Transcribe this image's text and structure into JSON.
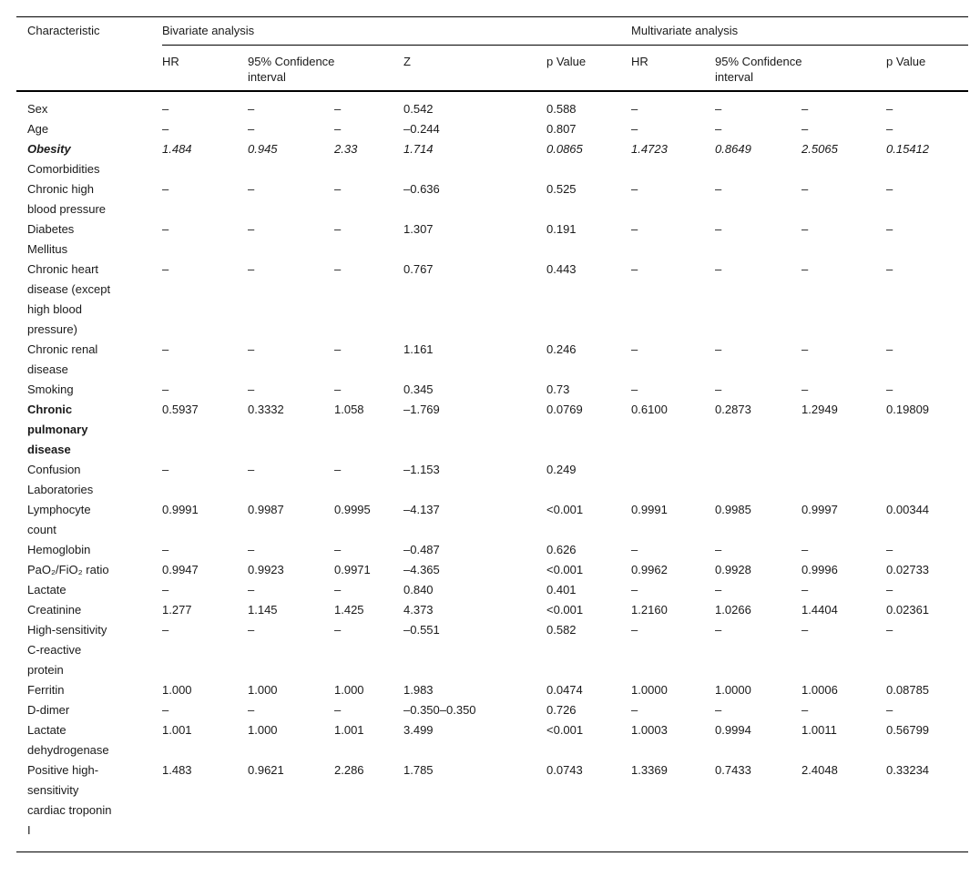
{
  "table": {
    "header": {
      "characteristic": "Characteristic",
      "bivariate_group": "Bivariate analysis",
      "multivariate_group": "Multivariate analysis",
      "sub": {
        "hr": "HR",
        "ci": "95% Confidence interval",
        "z": "Z",
        "p": "p Value"
      }
    },
    "rows": [
      {
        "label": "Sex",
        "style": "normal",
        "values": [
          "–",
          "–",
          "–",
          "0.542",
          "0.588",
          "–",
          "–",
          "–",
          "–"
        ]
      },
      {
        "label": "Age",
        "style": "normal",
        "values": [
          "–",
          "–",
          "–",
          "–0.244",
          "0.807",
          "–",
          "–",
          "–",
          "–"
        ]
      },
      {
        "label": "Obesity",
        "style": "bold-italic",
        "values": [
          "1.484",
          "0.945",
          "2.33",
          "1.714",
          "0.0865",
          "1.4723",
          "0.8649",
          "2.5065",
          "0.15412"
        ]
      },
      {
        "label": "Comorbidities",
        "style": "section",
        "values": []
      },
      {
        "label": "Chronic high blood pressure",
        "style": "normal",
        "values": [
          "–",
          "–",
          "–",
          "–0.636",
          "0.525",
          "–",
          "–",
          "–",
          "–"
        ]
      },
      {
        "label": "Diabetes Mellitus",
        "style": "normal",
        "values": [
          "–",
          "–",
          "–",
          "1.307",
          "0.191",
          "–",
          "–",
          "–",
          "–"
        ]
      },
      {
        "label": "Chronic heart disease (except high blood pressure)",
        "style": "normal",
        "values": [
          "–",
          "–",
          "–",
          "0.767",
          "0.443",
          "–",
          "–",
          "–",
          "–"
        ]
      },
      {
        "label": "Chronic renal disease",
        "style": "normal",
        "values": [
          "–",
          "–",
          "–",
          "1.161",
          "0.246",
          "–",
          "–",
          "–",
          "–"
        ]
      },
      {
        "label": "Smoking",
        "style": "normal",
        "values": [
          "–",
          "–",
          "–",
          "0.345",
          "0.73",
          "–",
          "–",
          "–",
          "–"
        ]
      },
      {
        "label": "Chronic pulmonary disease",
        "style": "bold",
        "values": [
          "0.5937",
          "0.3332",
          "1.058",
          "–1.769",
          "0.0769",
          "0.6100",
          "0.2873",
          "1.2949",
          "0.19809"
        ]
      },
      {
        "label": "Confusion",
        "style": "normal",
        "values": [
          "–",
          "–",
          "–",
          "–1.153",
          "0.249",
          "",
          "",
          "",
          ""
        ]
      },
      {
        "label": "Laboratories",
        "style": "section",
        "values": []
      },
      {
        "label": "Lymphocyte count",
        "style": "normal",
        "values": [
          "0.9991",
          "0.9987",
          "0.9995",
          "–4.137",
          "<0.001",
          "0.9991",
          "0.9985",
          "0.9997",
          "0.00344"
        ]
      },
      {
        "label": "Hemoglobin",
        "style": "normal",
        "values": [
          "–",
          "–",
          "–",
          "–0.487",
          "0.626",
          "–",
          "–",
          "–",
          "–"
        ]
      },
      {
        "label": "PaO₂/FiO₂ ratio",
        "style": "normal",
        "values": [
          "0.9947",
          "0.9923",
          "0.9971",
          "–4.365",
          "<0.001",
          "0.9962",
          "0.9928",
          "0.9996",
          "0.02733"
        ]
      },
      {
        "label": "Lactate",
        "style": "normal",
        "values": [
          "–",
          "–",
          "–",
          "0.840",
          "0.401",
          "–",
          "–",
          "–",
          "–"
        ]
      },
      {
        "label": "Creatinine",
        "style": "normal",
        "values": [
          "1.277",
          "1.145",
          "1.425",
          "4.373",
          "<0.001",
          "1.2160",
          "1.0266",
          "1.4404",
          "0.02361"
        ]
      },
      {
        "label": "High-sensitivity C-reactive protein",
        "style": "normal",
        "values": [
          "–",
          "–",
          "–",
          "–0.551",
          "0.582",
          "–",
          "–",
          "–",
          "–"
        ]
      },
      {
        "label": "Ferritin",
        "style": "normal",
        "values": [
          "1.000",
          "1.000",
          "1.000",
          "1.983",
          "0.0474",
          "1.0000",
          "1.0000",
          "1.0006",
          "0.08785"
        ]
      },
      {
        "label": "D-dimer",
        "style": "normal",
        "values": [
          "–",
          "–",
          "–",
          "–0.350–0.350",
          "0.726",
          "–",
          "–",
          "–",
          "–"
        ]
      },
      {
        "label": "Lactate dehydrogenase",
        "style": "normal",
        "values": [
          "1.001",
          "1.000",
          "1.001",
          "3.499",
          "<0.001",
          "1.0003",
          "0.9994",
          "1.0011",
          "0.56799"
        ]
      },
      {
        "label": "Positive high-sensitivity cardiac troponin I",
        "style": "normal",
        "values": [
          "1.483",
          "0.9621",
          "2.286",
          "1.785",
          "0.0743",
          "1.3369",
          "0.7433",
          "2.4048",
          "0.33234"
        ]
      }
    ]
  }
}
